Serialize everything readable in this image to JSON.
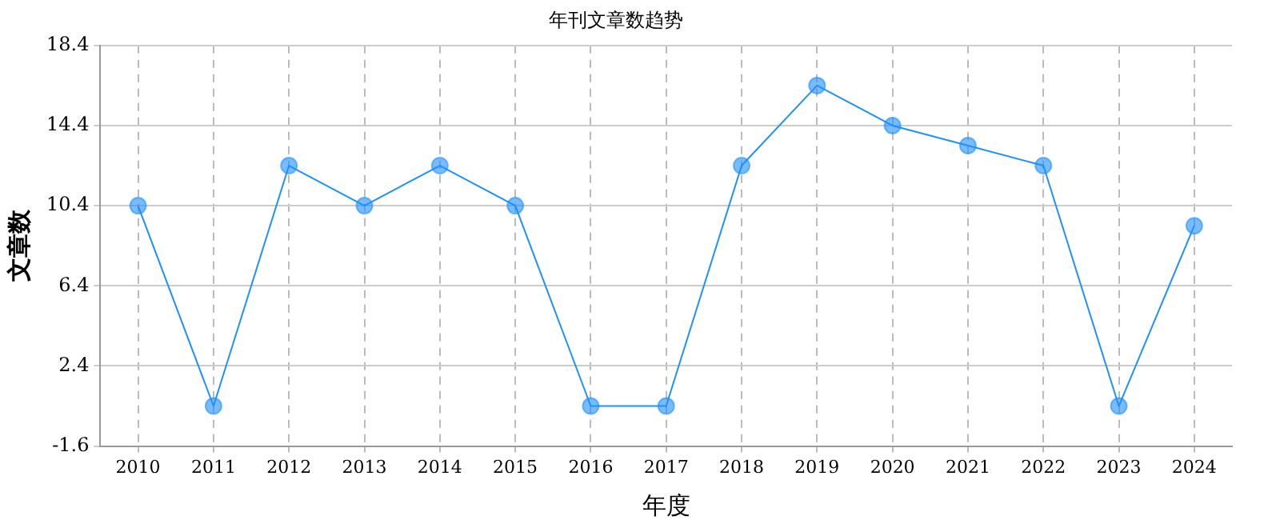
{
  "chart_data": {
    "type": "line",
    "title": "年刊文章数趋势",
    "xlabel": "年度",
    "ylabel": "文章数",
    "categories": [
      "2010",
      "2011",
      "2012",
      "2013",
      "2014",
      "2015",
      "2016",
      "2017",
      "2018",
      "2019",
      "2020",
      "2021",
      "2022",
      "2023",
      "2024"
    ],
    "series": [
      {
        "color": "#1e90ff",
        "values": [
          10.4,
          0.4,
          12.4,
          10.4,
          12.4,
          10.4,
          0.4,
          0.4,
          12.4,
          16.4,
          14.4,
          13.4,
          12.4,
          0.4,
          9.4
        ]
      }
    ],
    "ylim": [
      -1.6,
      18.4
    ],
    "yticks": [
      -1.6,
      2.4,
      6.4,
      10.4,
      14.4,
      18.4
    ],
    "grid": true,
    "legend": false,
    "marker": "circle",
    "line_style": "solid"
  }
}
